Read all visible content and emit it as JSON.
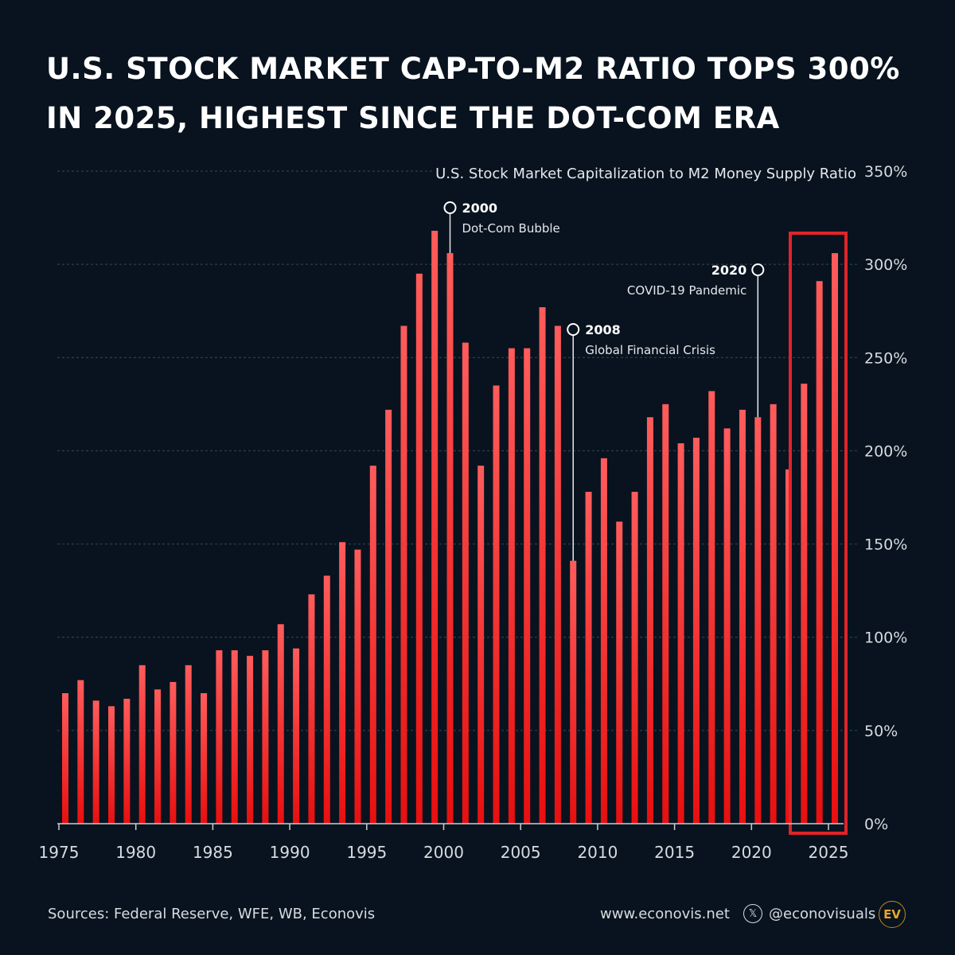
{
  "title_lines": [
    "U.S. STOCK MARKET CAP-TO-M2 RATIO TOPS 300%",
    "IN 2025, HIGHEST SINCE THE DOT-COM ERA"
  ],
  "footer": {
    "sources": "Sources: Federal Reserve, WFE, WB, Econovis",
    "website": "www.econovis.net",
    "social_handle": "@econovisuals",
    "logo_text": "EV"
  },
  "colors": {
    "background": "#08131f",
    "bar_top": "#ff5c5c",
    "bar_bottom": "#e80f0f",
    "highlight_box": "#e0242a",
    "logo": "#e5a72a"
  },
  "chart_data": {
    "type": "bar",
    "title": "U.S. Stock Market Capitalization to M2 Money Supply Ratio",
    "xlabel": "",
    "ylabel": "",
    "ylim": [
      0,
      350
    ],
    "y_ticks": [
      "0%",
      "50%",
      "100%",
      "150%",
      "200%",
      "250%",
      "300%",
      "350%"
    ],
    "y_axis_position": "right",
    "grid": "horizontal dashed",
    "x_ticks": [
      "1975",
      "1980",
      "1985",
      "1990",
      "1995",
      "2000",
      "2005",
      "2010",
      "2015",
      "2020",
      "2025"
    ],
    "categories": [
      1975,
      1976,
      1977,
      1978,
      1979,
      1980,
      1981,
      1982,
      1983,
      1984,
      1985,
      1986,
      1987,
      1988,
      1989,
      1990,
      1991,
      1992,
      1993,
      1994,
      1995,
      1996,
      1997,
      1998,
      1999,
      2000,
      2001,
      2002,
      2003,
      2004,
      2005,
      2006,
      2007,
      2008,
      2009,
      2010,
      2011,
      2012,
      2013,
      2014,
      2015,
      2016,
      2017,
      2018,
      2019,
      2020,
      2021,
      2022,
      2023,
      2024,
      2025
    ],
    "values": [
      70,
      77,
      66,
      63,
      67,
      85,
      72,
      76,
      85,
      70,
      93,
      93,
      90,
      93,
      107,
      94,
      123,
      133,
      151,
      147,
      192,
      222,
      267,
      295,
      318,
      306,
      258,
      192,
      235,
      255,
      255,
      277,
      267,
      141,
      178,
      196,
      162,
      178,
      218,
      225,
      204,
      207,
      232,
      212,
      222,
      218,
      225,
      190,
      236,
      291,
      306
    ],
    "unit": "%",
    "annotations": [
      {
        "year": 2000,
        "label": "2000",
        "text": "Dot-Com Bubble"
      },
      {
        "year": 2008,
        "label": "2008",
        "text": "Global Financial Crisis"
      },
      {
        "year": 2020,
        "label": "2020",
        "text": "COVID-19 Pandemic"
      }
    ],
    "highlight_range": [
      2022,
      2025
    ]
  }
}
